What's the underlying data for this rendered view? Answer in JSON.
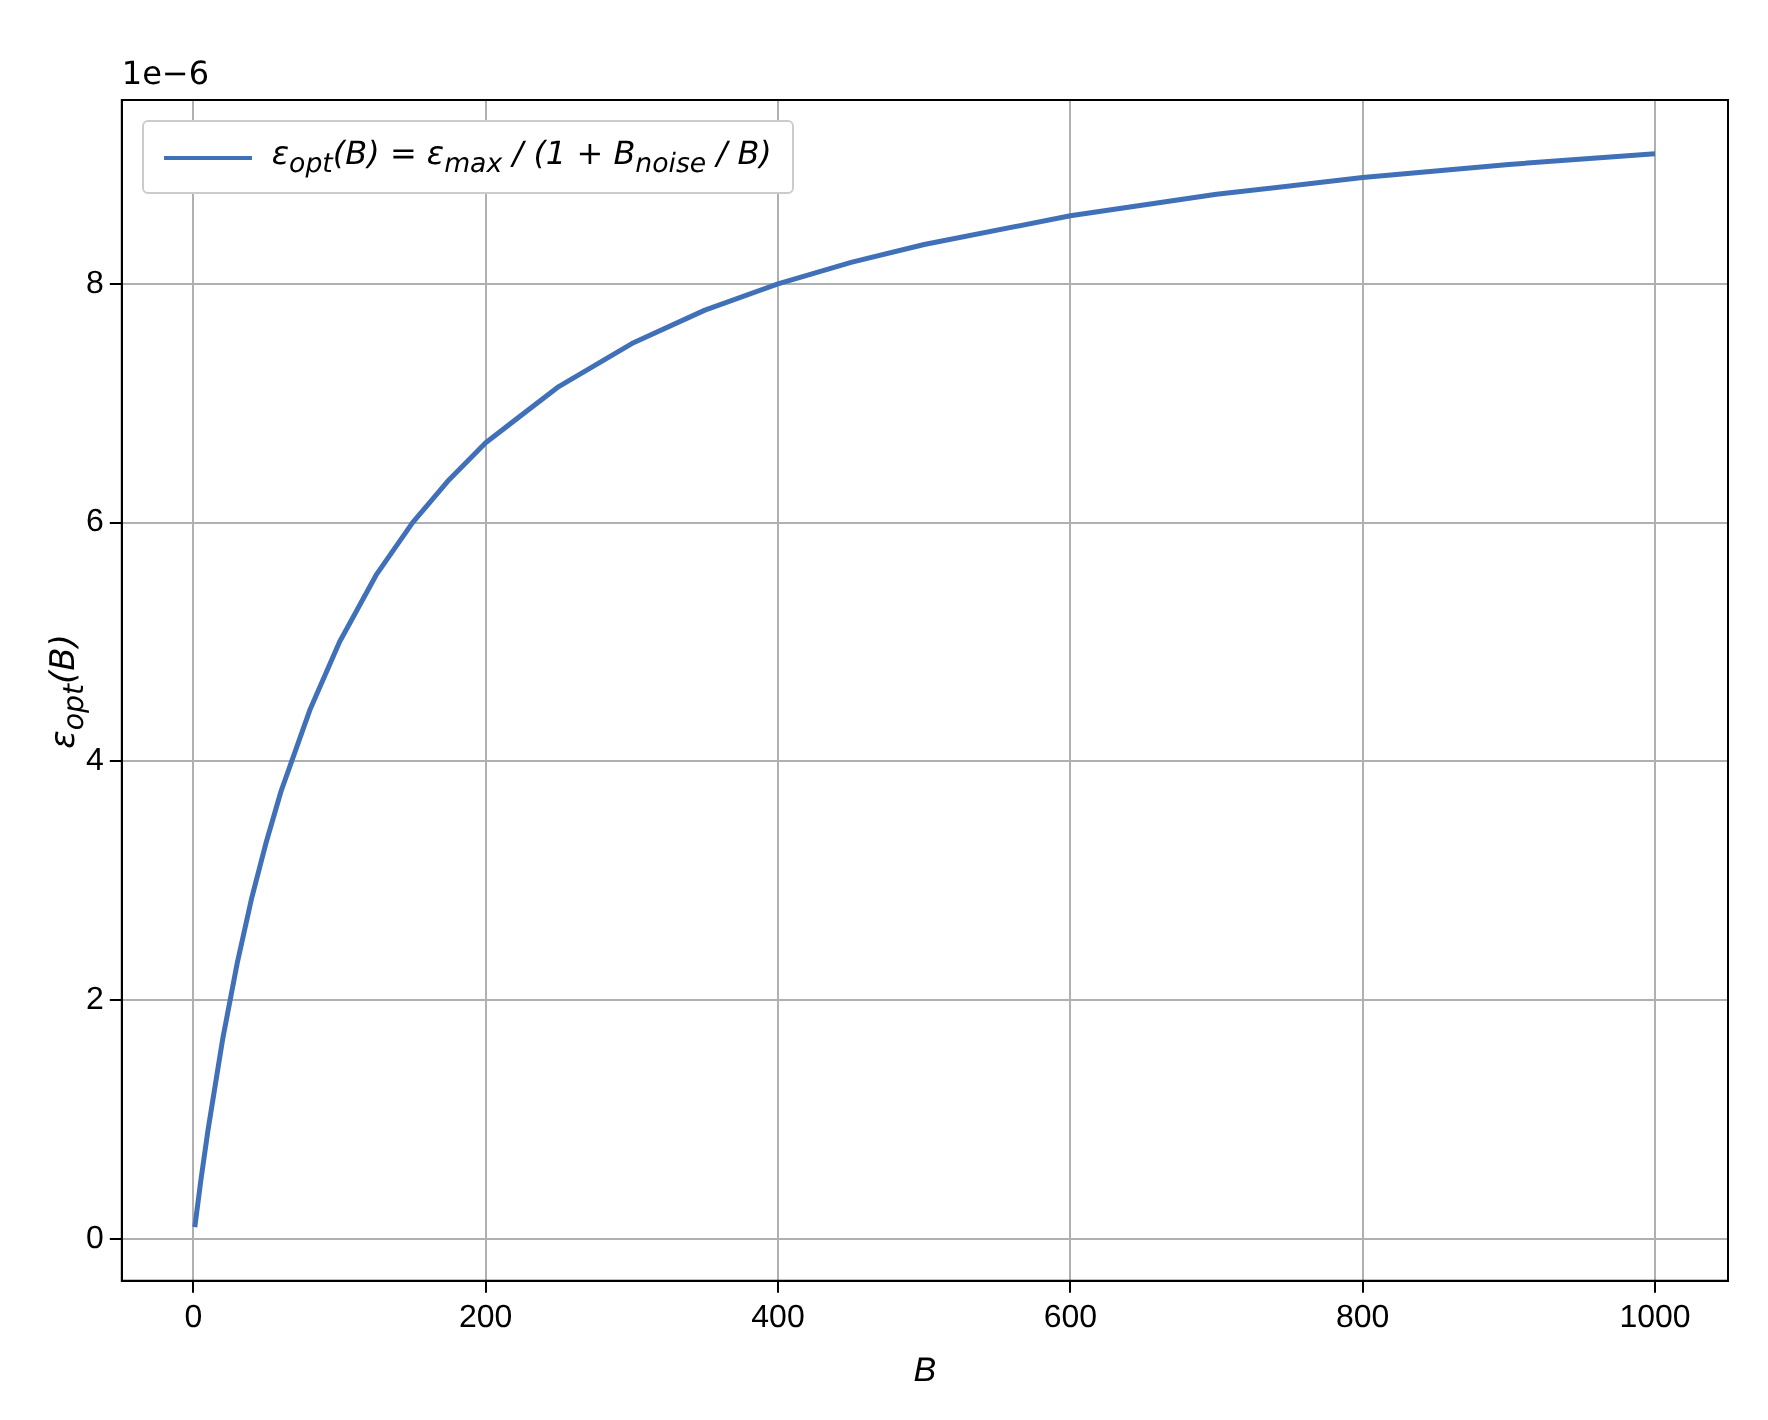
{
  "chart_data": {
    "type": "line",
    "xlabel": "B",
    "ylabel": "ε$_{opt}$(B)",
    "annotations": [
      "1e−6"
    ],
    "series": [
      {
        "name": "ε$_{opt}$(B) = ε$_{max}$ / (1 + B$_{noise}$ / B)",
        "color": "#4070b8",
        "x": [
          1,
          5,
          10,
          20,
          30,
          40,
          50,
          60,
          80,
          100,
          125,
          150,
          175,
          200,
          250,
          300,
          350,
          400,
          450,
          500,
          600,
          700,
          800,
          900,
          1000
        ],
        "values": [
          0.1,
          0.48,
          0.91,
          1.67,
          2.31,
          2.86,
          3.33,
          3.75,
          4.44,
          5.0,
          5.56,
          6.0,
          6.36,
          6.67,
          7.14,
          7.5,
          7.78,
          8.0,
          8.18,
          8.33,
          8.57,
          8.75,
          8.89,
          9.0,
          9.09
        ]
      }
    ],
    "xlim": [
      -48.95,
      1049.95
    ],
    "ylim": [
      -0.35,
      9.54
    ],
    "xticks": [
      0,
      200,
      400,
      600,
      800,
      1000
    ],
    "yticks": [
      0,
      2,
      4,
      6,
      8
    ],
    "grid": true,
    "legend": "top left",
    "marker": "none",
    "line_style": "solid"
  }
}
